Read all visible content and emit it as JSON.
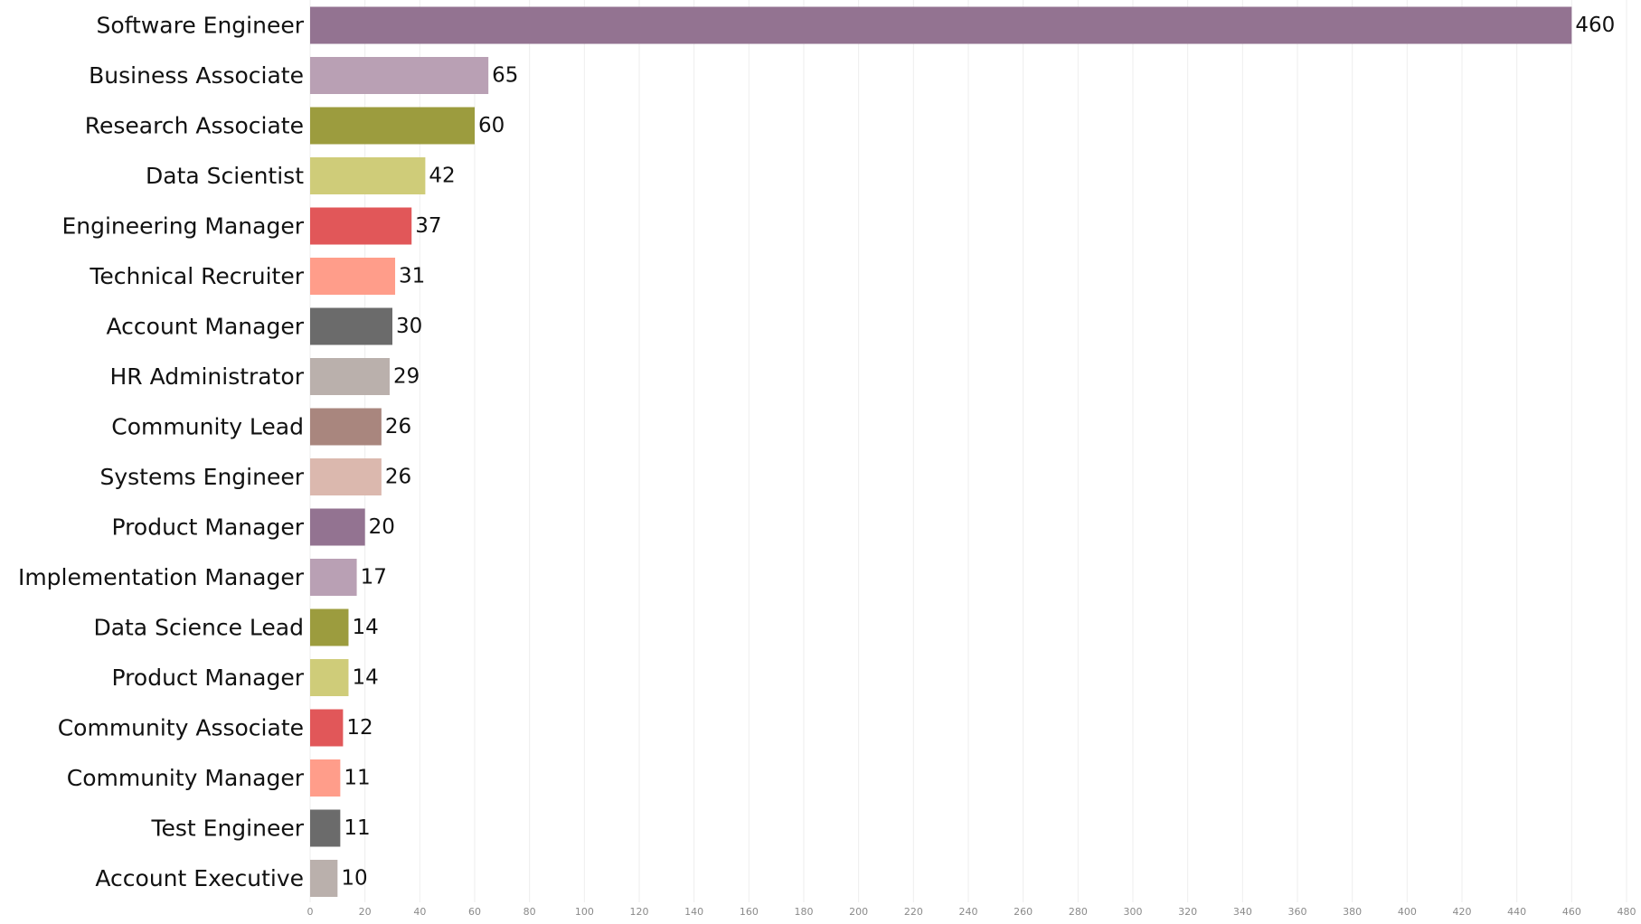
{
  "chart_data": {
    "type": "bar",
    "orientation": "horizontal",
    "title": "",
    "xlabel": "",
    "ylabel": "",
    "categories": [
      "Software Engineer",
      "Business Associate",
      "Research Associate",
      "Data Scientist",
      "Engineering Manager",
      "Technical Recruiter",
      "Account Manager",
      "HR Administrator",
      "Community Lead",
      "Systems Engineer",
      "Product Manager",
      "Implementation Manager",
      "Data Science Lead",
      "Product Manager",
      "Community Associate",
      "Community Manager",
      "Test Engineer",
      "Account Executive"
    ],
    "values": [
      460,
      65,
      60,
      42,
      37,
      31,
      30,
      29,
      26,
      26,
      20,
      17,
      14,
      14,
      12,
      11,
      11,
      10
    ],
    "colors": [
      "#937391",
      "#b9a0b4",
      "#9c9c3e",
      "#cfcc79",
      "#e15759",
      "#ff9d8a",
      "#6b6b6b",
      "#bab0ac",
      "#a9867e",
      "#dbb8ae",
      "#937391",
      "#b9a0b4",
      "#9c9c3e",
      "#cfcc79",
      "#e15759",
      "#ff9d8a",
      "#6b6b6b",
      "#bab0ac"
    ],
    "xlim": [
      0,
      480
    ],
    "x_ticks": [
      0,
      20,
      40,
      60,
      80,
      100,
      120,
      140,
      160,
      180,
      200,
      220,
      240,
      260,
      280,
      300,
      320,
      340,
      360,
      380,
      400,
      420,
      440,
      460,
      480
    ],
    "grid": "vertical",
    "legend": "none"
  }
}
